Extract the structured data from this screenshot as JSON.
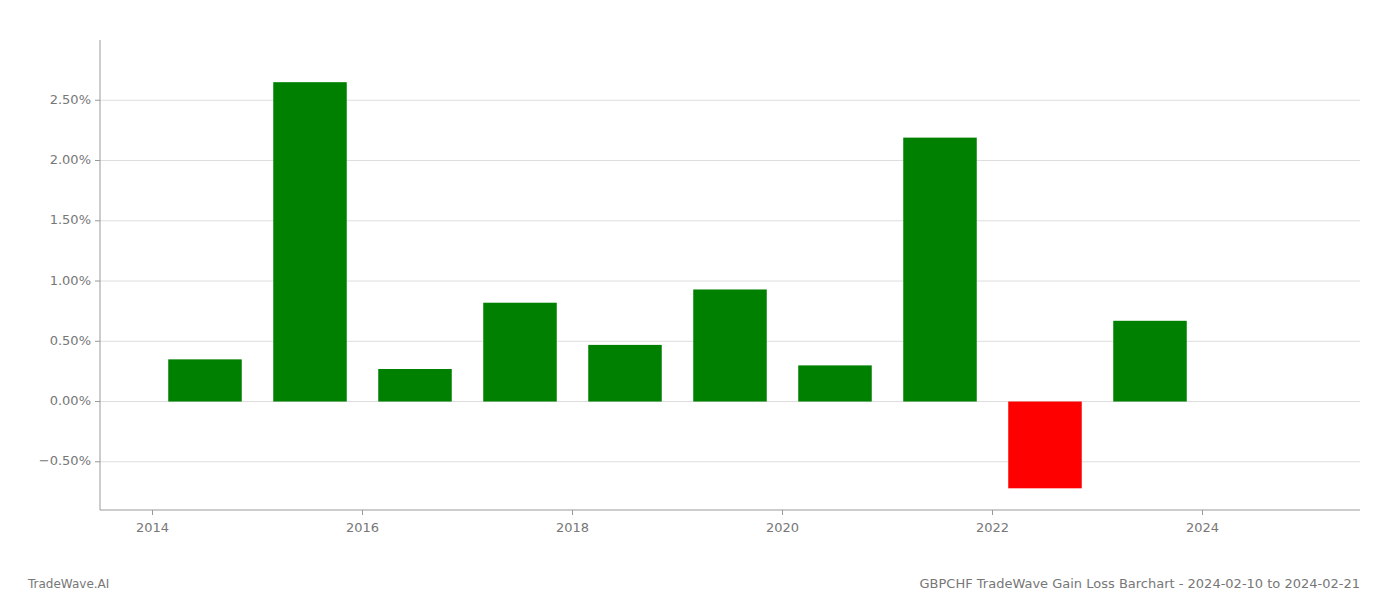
{
  "chart_data": {
    "type": "bar",
    "title": "GBPCHF TradeWave Gain Loss Barchart - 2024-02-10 to 2024-02-21",
    "annotations": [
      "TradeWave.AI"
    ],
    "x": [
      2014.5,
      2015.5,
      2016.5,
      2017.5,
      2018.5,
      2019.5,
      2020.5,
      2021.5,
      2022.5,
      2023.5
    ],
    "values": [
      0.0035,
      0.0265,
      0.0027,
      0.0082,
      0.0047,
      0.0093,
      0.003,
      0.0219,
      -0.0072,
      0.0067
    ],
    "colors": [
      "#008000",
      "#008000",
      "#008000",
      "#008000",
      "#008000",
      "#008000",
      "#008000",
      "#008000",
      "#ff0000",
      "#008000"
    ],
    "xlim": [
      2013.5,
      2025.5
    ],
    "xticks": [
      2014,
      2016,
      2018,
      2020,
      2022,
      2024
    ],
    "ylim": [
      -0.009,
      0.03
    ],
    "yticks": [
      {
        "value": -0.005,
        "label": "−0.50%"
      },
      {
        "value": 0.0,
        "label": "0.00%"
      },
      {
        "value": 0.005,
        "label": "0.50%"
      },
      {
        "value": 0.01,
        "label": "1.00%"
      },
      {
        "value": 0.015,
        "label": "1.50%"
      },
      {
        "value": 0.02,
        "label": "2.00%"
      },
      {
        "value": 0.025,
        "label": "2.50%"
      }
    ],
    "grid": true
  }
}
